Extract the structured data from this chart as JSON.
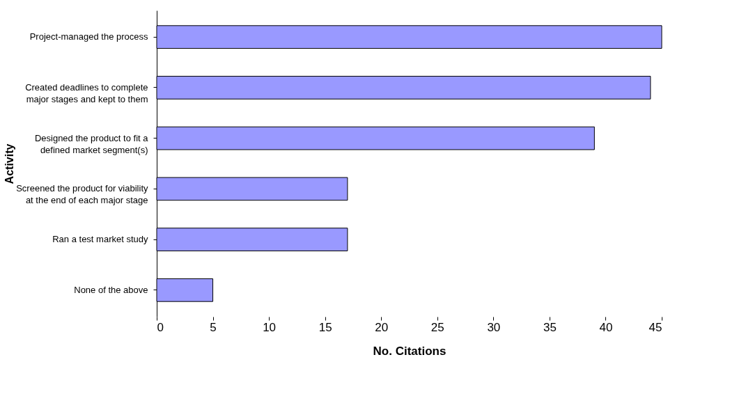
{
  "chart_data": {
    "type": "bar",
    "orientation": "horizontal",
    "xlabel": "No. Citations",
    "ylabel": "Activity",
    "categories": [
      "Project-managed the process",
      "Created deadlines to complete\nmajor stages and kept to them",
      "Designed the product to fit a\ndefined market segment(s)",
      "Screened the product for viability\nat the end of each major stage",
      "Ran a test market study",
      "None of the above"
    ],
    "values": [
      45,
      44,
      39,
      17,
      17,
      5
    ],
    "color": "#9999ff",
    "xlim": [
      0,
      45
    ],
    "xticks": [
      0,
      5,
      10,
      15,
      20,
      25,
      30,
      35,
      40,
      45
    ]
  }
}
